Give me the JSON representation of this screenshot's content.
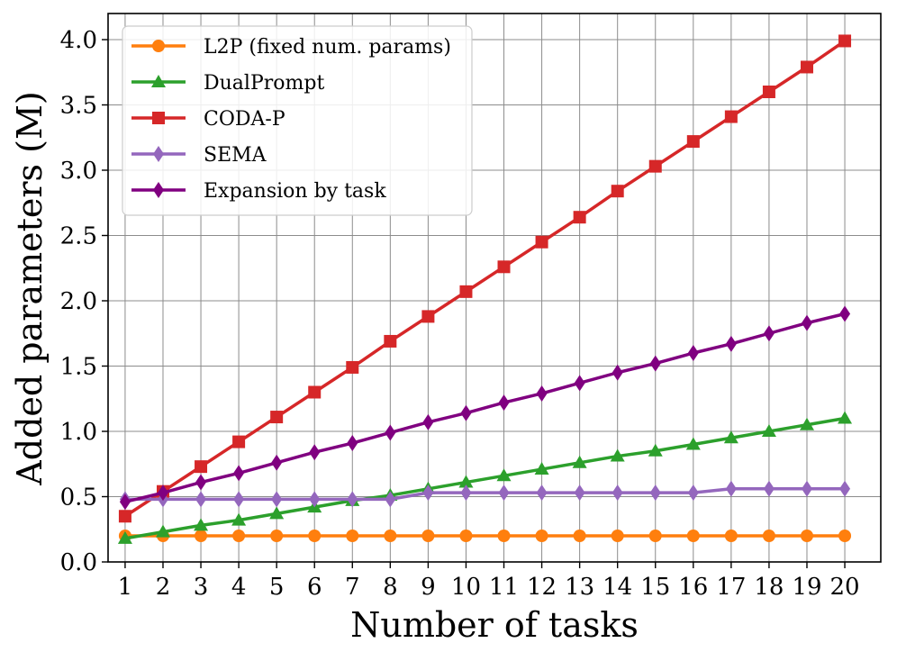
{
  "chart_data": {
    "type": "line",
    "title": "",
    "xlabel": "Number of tasks",
    "ylabel": "Added parameters (M)",
    "x": [
      1,
      2,
      3,
      4,
      5,
      6,
      7,
      8,
      9,
      10,
      11,
      12,
      13,
      14,
      15,
      16,
      17,
      18,
      19,
      20
    ],
    "x_tick_labels": [
      "1",
      "2",
      "3",
      "4",
      "5",
      "6",
      "7",
      "8",
      "9",
      "10",
      "11",
      "12",
      "13",
      "14",
      "15",
      "16",
      "17",
      "18",
      "19",
      "20"
    ],
    "xlim": [
      0.55,
      20.95
    ],
    "ylim": [
      0.0,
      4.2
    ],
    "y_ticks": [
      0.0,
      0.5,
      1.0,
      1.5,
      2.0,
      2.5,
      3.0,
      3.5,
      4.0
    ],
    "y_tick_labels": [
      "0.0",
      "0.5",
      "1.0",
      "1.5",
      "2.0",
      "2.5",
      "3.0",
      "3.5",
      "4.0"
    ],
    "grid": true,
    "legend_position": "top-left",
    "series": [
      {
        "name": "L2P (fixed num. params)",
        "color": "#ff7f0e",
        "marker": "circle",
        "values": [
          0.2,
          0.2,
          0.2,
          0.2,
          0.2,
          0.2,
          0.2,
          0.2,
          0.2,
          0.2,
          0.2,
          0.2,
          0.2,
          0.2,
          0.2,
          0.2,
          0.2,
          0.2,
          0.2,
          0.2
        ]
      },
      {
        "name": "DualPrompt",
        "color": "#2ca02c",
        "marker": "triangle",
        "values": [
          0.18,
          0.23,
          0.28,
          0.32,
          0.37,
          0.42,
          0.47,
          0.51,
          0.56,
          0.61,
          0.66,
          0.71,
          0.76,
          0.81,
          0.85,
          0.9,
          0.95,
          1.0,
          1.05,
          1.1
        ]
      },
      {
        "name": "CODA-P",
        "color": "#d62728",
        "marker": "square",
        "values": [
          0.35,
          0.54,
          0.73,
          0.92,
          1.11,
          1.3,
          1.49,
          1.69,
          1.88,
          2.07,
          2.26,
          2.45,
          2.64,
          2.84,
          3.03,
          3.22,
          3.41,
          3.6,
          3.79,
          3.99
        ]
      },
      {
        "name": "SEMA",
        "color": "#9467bd",
        "marker": "thin_diamond",
        "values": [
          0.48,
          0.48,
          0.48,
          0.48,
          0.48,
          0.48,
          0.48,
          0.48,
          0.53,
          0.53,
          0.53,
          0.53,
          0.53,
          0.53,
          0.53,
          0.53,
          0.56,
          0.56,
          0.56,
          0.56
        ]
      },
      {
        "name": "Expansion by task",
        "color": "#800080",
        "marker": "thin_diamond",
        "values": [
          0.46,
          0.53,
          0.61,
          0.68,
          0.76,
          0.84,
          0.91,
          0.99,
          1.07,
          1.14,
          1.22,
          1.29,
          1.37,
          1.45,
          1.52,
          1.6,
          1.67,
          1.75,
          1.83,
          1.9
        ]
      }
    ]
  }
}
